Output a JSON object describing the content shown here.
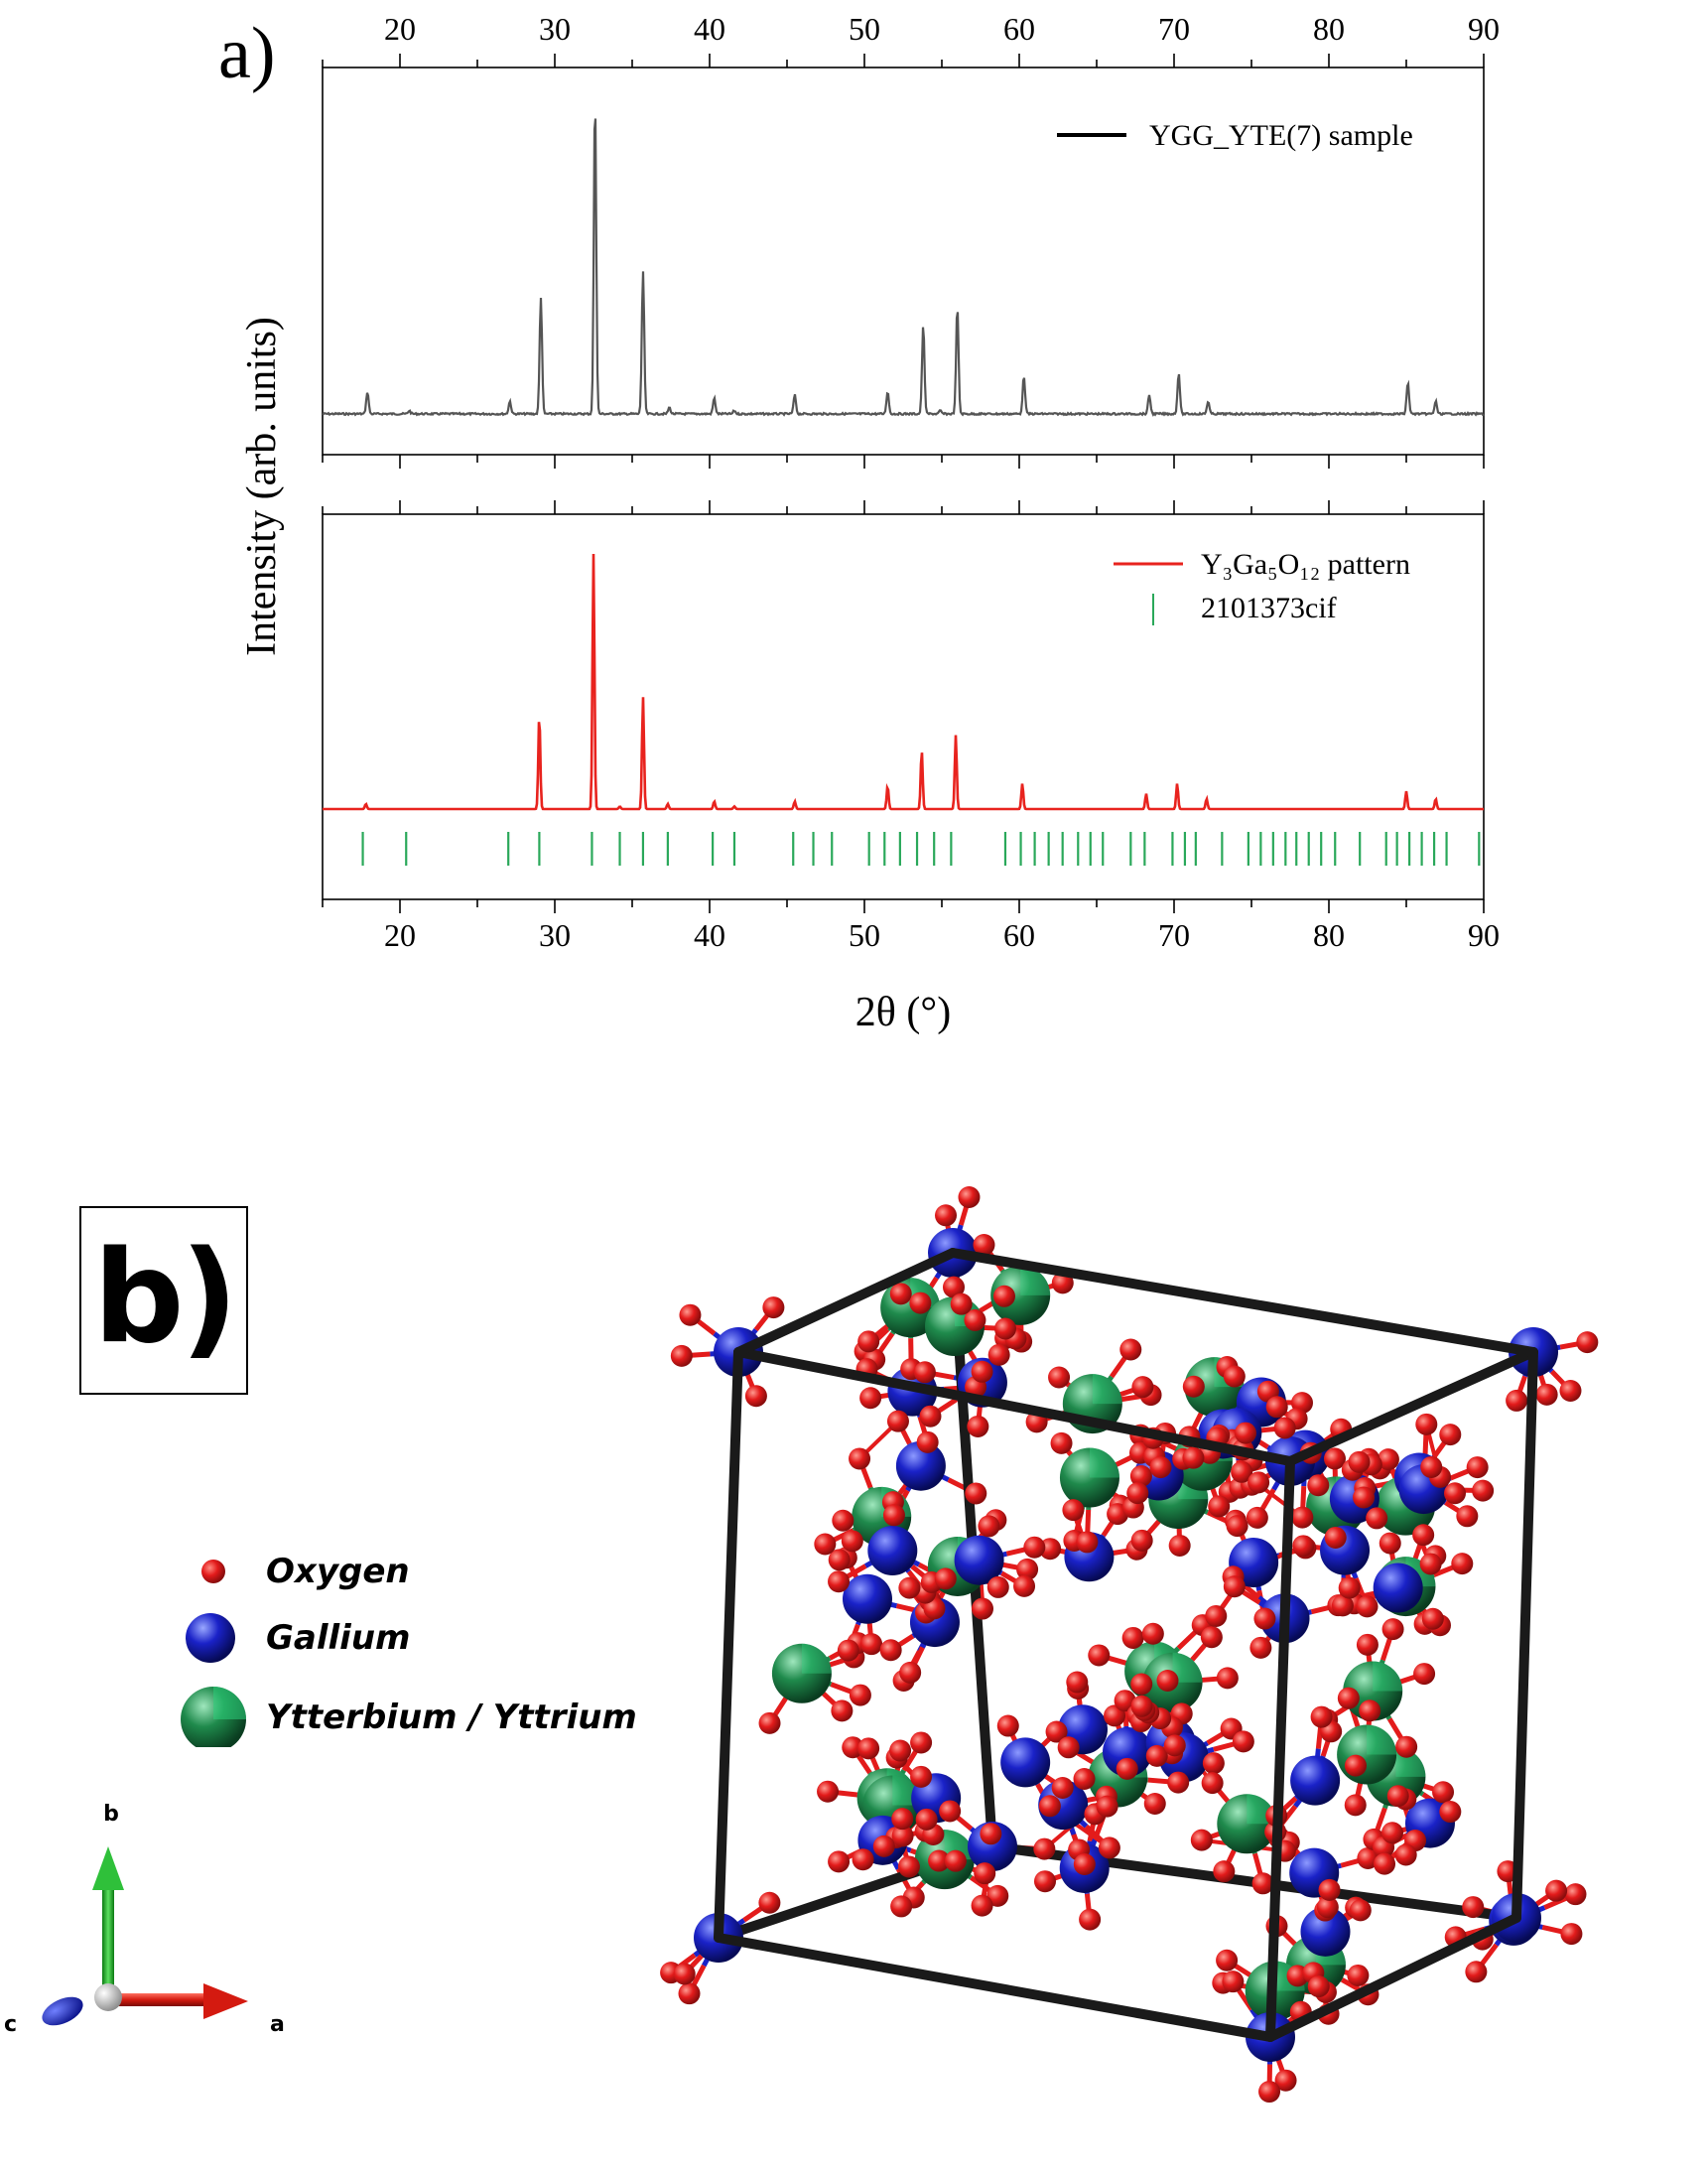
{
  "panel_a": {
    "label": "a)",
    "ylabel": "Intensity (arb. units)",
    "xlabel": "2θ (°)"
  },
  "panel_b": {
    "label": "b)",
    "legend": [
      {
        "name": "Oxygen",
        "color": "#e31b1b"
      },
      {
        "name": "Gallium",
        "color": "#1a22c8"
      },
      {
        "name": "Ytterbium / Yttrium",
        "color": "#1f8a4c"
      }
    ],
    "axes_labels": {
      "a": "a",
      "b": "b",
      "c": "c"
    },
    "colors": {
      "oxygen": "#e31b1b",
      "gallium": "#1a22c8",
      "yttrium": "#1f8a4c",
      "cell_edge": "#1a1a1a"
    }
  },
  "chart_data": [
    {
      "type": "line",
      "xlim": [
        15,
        90
      ],
      "xticks": [
        20,
        30,
        40,
        50,
        60,
        70,
        80,
        90
      ],
      "grid": false,
      "legend_position": "top-right",
      "series": [
        {
          "name": "YGG_YTE(7) sample",
          "color": "#555555",
          "baseline": 0.06,
          "peaks": [
            [
              17.9,
              0.07
            ],
            [
              20.6,
              0.01
            ],
            [
              27.1,
              0.04
            ],
            [
              29.1,
              0.37
            ],
            [
              32.6,
              1.0
            ],
            [
              35.7,
              0.45
            ],
            [
              37.4,
              0.02
            ],
            [
              40.3,
              0.05
            ],
            [
              41.6,
              0.01
            ],
            [
              45.5,
              0.06
            ],
            [
              51.5,
              0.07
            ],
            [
              53.8,
              0.28
            ],
            [
              54.9,
              0.01
            ],
            [
              56.0,
              0.34
            ],
            [
              60.3,
              0.12
            ],
            [
              68.4,
              0.06
            ],
            [
              70.3,
              0.13
            ],
            [
              72.2,
              0.04
            ],
            [
              85.1,
              0.1
            ],
            [
              86.9,
              0.04
            ]
          ]
        }
      ]
    },
    {
      "type": "line",
      "xlim": [
        15,
        90
      ],
      "xticks": [
        20,
        30,
        40,
        50,
        60,
        70,
        80,
        90
      ],
      "grid": false,
      "legend_position": "top-right",
      "series": [
        {
          "name": "Y₃Ga₅O₁₂ pattern",
          "color": "#e8231e",
          "baseline": 0.0,
          "peaks": [
            [
              17.8,
              0.02
            ],
            [
              29.0,
              0.37
            ],
            [
              32.5,
              1.0
            ],
            [
              34.2,
              0.01
            ],
            [
              35.7,
              0.44
            ],
            [
              37.3,
              0.02
            ],
            [
              40.3,
              0.03
            ],
            [
              41.6,
              0.01
            ],
            [
              45.5,
              0.03
            ],
            [
              51.5,
              0.09
            ],
            [
              53.7,
              0.23
            ],
            [
              55.9,
              0.29
            ],
            [
              60.2,
              0.1
            ],
            [
              68.2,
              0.06
            ],
            [
              70.2,
              0.1
            ],
            [
              72.1,
              0.04
            ],
            [
              85.0,
              0.07
            ],
            [
              86.9,
              0.04
            ]
          ]
        },
        {
          "name": "2101373cif",
          "color": "#2aa85a",
          "type": "reference_ticks",
          "positions": [
            17.6,
            20.4,
            27.0,
            29.0,
            32.4,
            34.2,
            35.7,
            37.3,
            40.2,
            41.6,
            45.4,
            46.7,
            47.9,
            50.3,
            51.3,
            52.3,
            53.4,
            54.5,
            55.6,
            59.1,
            60.1,
            61.0,
            61.9,
            62.8,
            63.8,
            64.6,
            65.4,
            67.2,
            68.1,
            69.9,
            70.7,
            71.4,
            73.1,
            74.8,
            75.6,
            76.4,
            77.2,
            77.9,
            78.7,
            79.5,
            80.4,
            82.0,
            83.7,
            84.4,
            85.2,
            86.0,
            86.8,
            87.6,
            89.7
          ]
        }
      ]
    }
  ]
}
